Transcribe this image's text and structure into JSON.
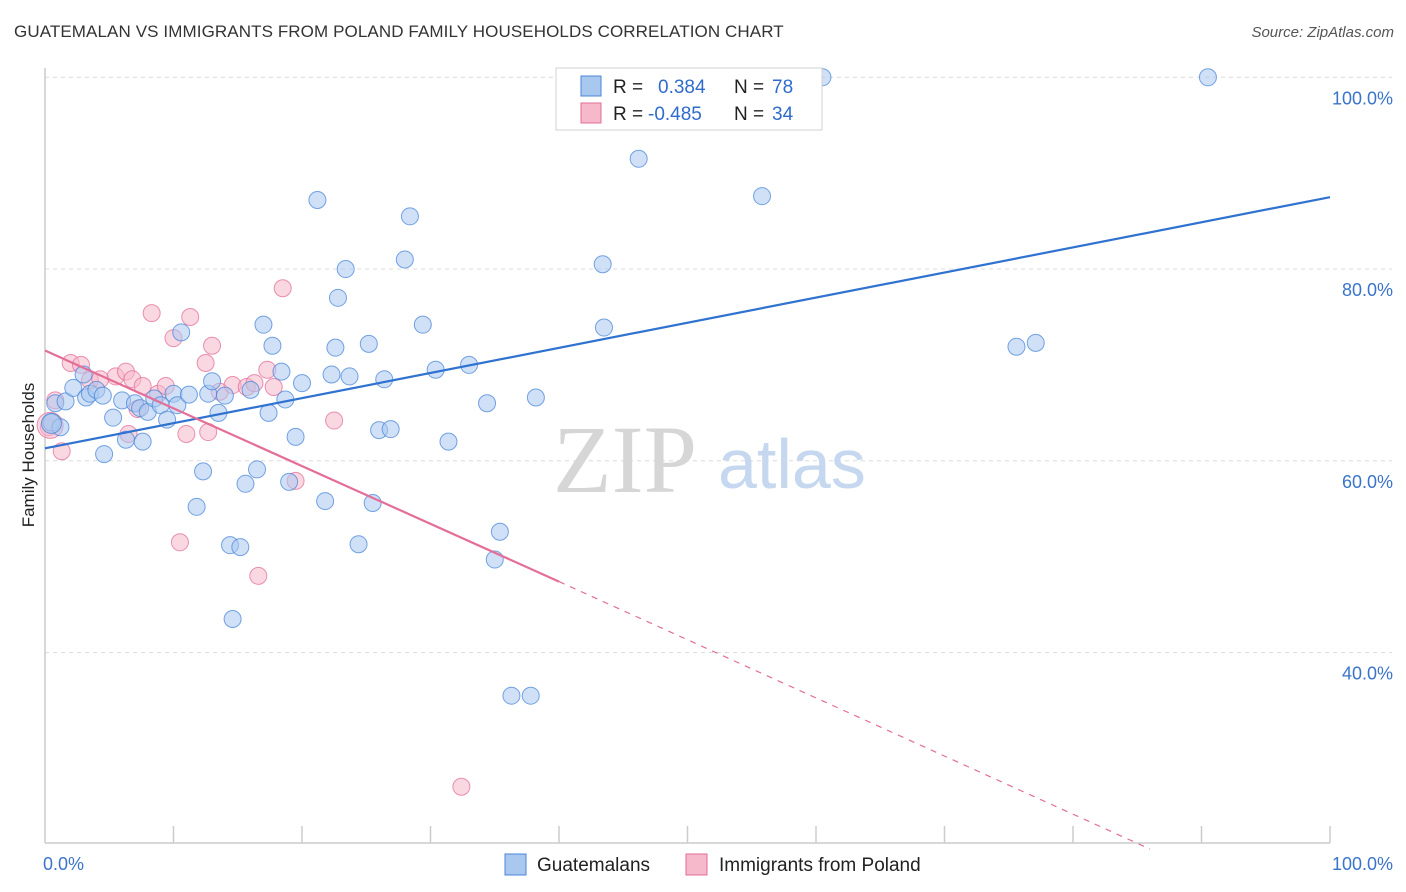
{
  "header": {
    "title": "GUATEMALAN VS IMMIGRANTS FROM POLAND FAMILY HOUSEHOLDS CORRELATION CHART",
    "source": "Source: ZipAtlas.com"
  },
  "watermark": {
    "zip": "ZIP",
    "atlas": "atlas"
  },
  "legend_box": {
    "rows": [
      {
        "r_label": "R =",
        "r_value": "0.384",
        "n_label": "N =",
        "n_value": "78",
        "color": "#a9c8f0"
      },
      {
        "r_label": "R =",
        "r_value": "-0.485",
        "n_label": "N =",
        "n_value": "34",
        "color": "#f6b8cb"
      }
    ]
  },
  "bottom_legend": {
    "items": [
      {
        "label": "Guatemalans",
        "color": "#a9c8f0"
      },
      {
        "label": "Immigrants from Poland",
        "color": "#f6b8cb"
      }
    ]
  },
  "chart_data": {
    "type": "scatter",
    "title": "GUATEMALAN VS IMMIGRANTS FROM POLAND FAMILY HOUSEHOLDS CORRELATION CHART",
    "xlabel": "",
    "ylabel": "Family Households",
    "xlim": [
      0,
      100
    ],
    "ylim": [
      20,
      102
    ],
    "x_tick_labels": [
      {
        "value": 0,
        "label": "0.0%"
      },
      {
        "value": 100,
        "label": "100.0%"
      }
    ],
    "y_tick_labels": [
      {
        "value": 40,
        "label": "40.0%"
      },
      {
        "value": 60,
        "label": "60.0%"
      },
      {
        "value": 80,
        "label": "80.0%"
      },
      {
        "value": 100,
        "label": "100.0%"
      }
    ],
    "grid": true,
    "series": [
      {
        "name": "Guatemalans",
        "color": "#4a86d8",
        "fill": "#a9c8f0",
        "r": 0.384,
        "n": 78,
        "trend": {
          "x0": 0,
          "y0": 61.3,
          "x1": 100,
          "y1": 87.5
        },
        "points": [
          [
            0.5,
            64.0
          ],
          [
            0.8,
            66.0
          ],
          [
            1.2,
            63.5
          ],
          [
            1.6,
            66.2
          ],
          [
            2.2,
            67.6
          ],
          [
            3.0,
            69.0
          ],
          [
            3.2,
            66.6
          ],
          [
            3.5,
            67.0
          ],
          [
            4.0,
            67.4
          ],
          [
            4.5,
            66.8
          ],
          [
            4.6,
            60.7
          ],
          [
            5.3,
            64.5
          ],
          [
            6.0,
            66.3
          ],
          [
            6.3,
            62.2
          ],
          [
            7.0,
            66.0
          ],
          [
            7.4,
            65.5
          ],
          [
            7.6,
            62.0
          ],
          [
            8.0,
            65.1
          ],
          [
            8.5,
            66.5
          ],
          [
            9.0,
            65.8
          ],
          [
            9.5,
            64.3
          ],
          [
            10.0,
            67.0
          ],
          [
            10.3,
            65.8
          ],
          [
            10.6,
            73.4
          ],
          [
            11.2,
            66.9
          ],
          [
            11.8,
            55.2
          ],
          [
            12.3,
            58.9
          ],
          [
            12.7,
            67.0
          ],
          [
            13.0,
            68.3
          ],
          [
            13.5,
            65.0
          ],
          [
            14.0,
            66.8
          ],
          [
            14.4,
            51.2
          ],
          [
            14.6,
            43.5
          ],
          [
            15.2,
            51.0
          ],
          [
            15.6,
            57.6
          ],
          [
            16.0,
            67.4
          ],
          [
            16.5,
            59.1
          ],
          [
            17.0,
            74.2
          ],
          [
            17.4,
            65.0
          ],
          [
            17.7,
            72.0
          ],
          [
            18.4,
            69.3
          ],
          [
            18.7,
            66.4
          ],
          [
            19.0,
            57.8
          ],
          [
            19.5,
            62.5
          ],
          [
            20.0,
            68.1
          ],
          [
            21.2,
            87.2
          ],
          [
            21.8,
            55.8
          ],
          [
            22.3,
            69.0
          ],
          [
            22.6,
            71.8
          ],
          [
            22.8,
            77.0
          ],
          [
            23.4,
            80.0
          ],
          [
            23.7,
            68.8
          ],
          [
            24.4,
            51.3
          ],
          [
            25.2,
            72.2
          ],
          [
            25.5,
            55.6
          ],
          [
            26.0,
            63.2
          ],
          [
            26.4,
            68.5
          ],
          [
            26.9,
            63.3
          ],
          [
            28.0,
            81.0
          ],
          [
            28.4,
            85.5
          ],
          [
            29.4,
            74.2
          ],
          [
            30.4,
            69.5
          ],
          [
            31.4,
            62.0
          ],
          [
            33.0,
            70.0
          ],
          [
            34.4,
            66.0
          ],
          [
            35.0,
            49.7
          ],
          [
            35.4,
            52.6
          ],
          [
            36.3,
            35.5
          ],
          [
            37.8,
            35.5
          ],
          [
            38.2,
            66.6
          ],
          [
            43.4,
            80.5
          ],
          [
            43.5,
            73.9
          ],
          [
            46.2,
            91.5
          ],
          [
            55.8,
            87.6
          ],
          [
            60.5,
            100.0
          ],
          [
            75.6,
            71.9
          ],
          [
            77.1,
            72.3
          ],
          [
            90.5,
            100.0
          ]
        ]
      },
      {
        "name": "Immigrants from Poland",
        "color": "#e46e98",
        "fill": "#f6b8cb",
        "r": -0.485,
        "n": 34,
        "trend": {
          "x0": 0,
          "y0": 71.5,
          "x1": 40,
          "y1": 47.4,
          "dash_to_x": 86,
          "dash_to_y": 19.5
        },
        "points": [
          [
            0.3,
            63.5
          ],
          [
            0.8,
            66.3
          ],
          [
            1.3,
            61.0
          ],
          [
            2.0,
            70.2
          ],
          [
            2.8,
            70.0
          ],
          [
            3.5,
            68.4
          ],
          [
            4.3,
            68.5
          ],
          [
            5.5,
            68.8
          ],
          [
            6.3,
            69.3
          ],
          [
            6.8,
            68.5
          ],
          [
            6.5,
            62.8
          ],
          [
            7.2,
            65.4
          ],
          [
            7.6,
            67.8
          ],
          [
            8.3,
            75.4
          ],
          [
            8.8,
            67.0
          ],
          [
            9.4,
            67.8
          ],
          [
            10.0,
            72.8
          ],
          [
            10.5,
            51.5
          ],
          [
            11.0,
            62.8
          ],
          [
            11.3,
            75.0
          ],
          [
            12.5,
            70.2
          ],
          [
            12.7,
            63.0
          ],
          [
            13.0,
            72.0
          ],
          [
            13.6,
            67.2
          ],
          [
            14.6,
            67.9
          ],
          [
            15.7,
            67.7
          ],
          [
            16.3,
            68.1
          ],
          [
            16.6,
            48.0
          ],
          [
            17.3,
            69.5
          ],
          [
            17.8,
            67.7
          ],
          [
            18.5,
            78.0
          ],
          [
            19.5,
            57.9
          ],
          [
            22.5,
            64.2
          ],
          [
            32.4,
            26.0
          ]
        ]
      }
    ]
  }
}
